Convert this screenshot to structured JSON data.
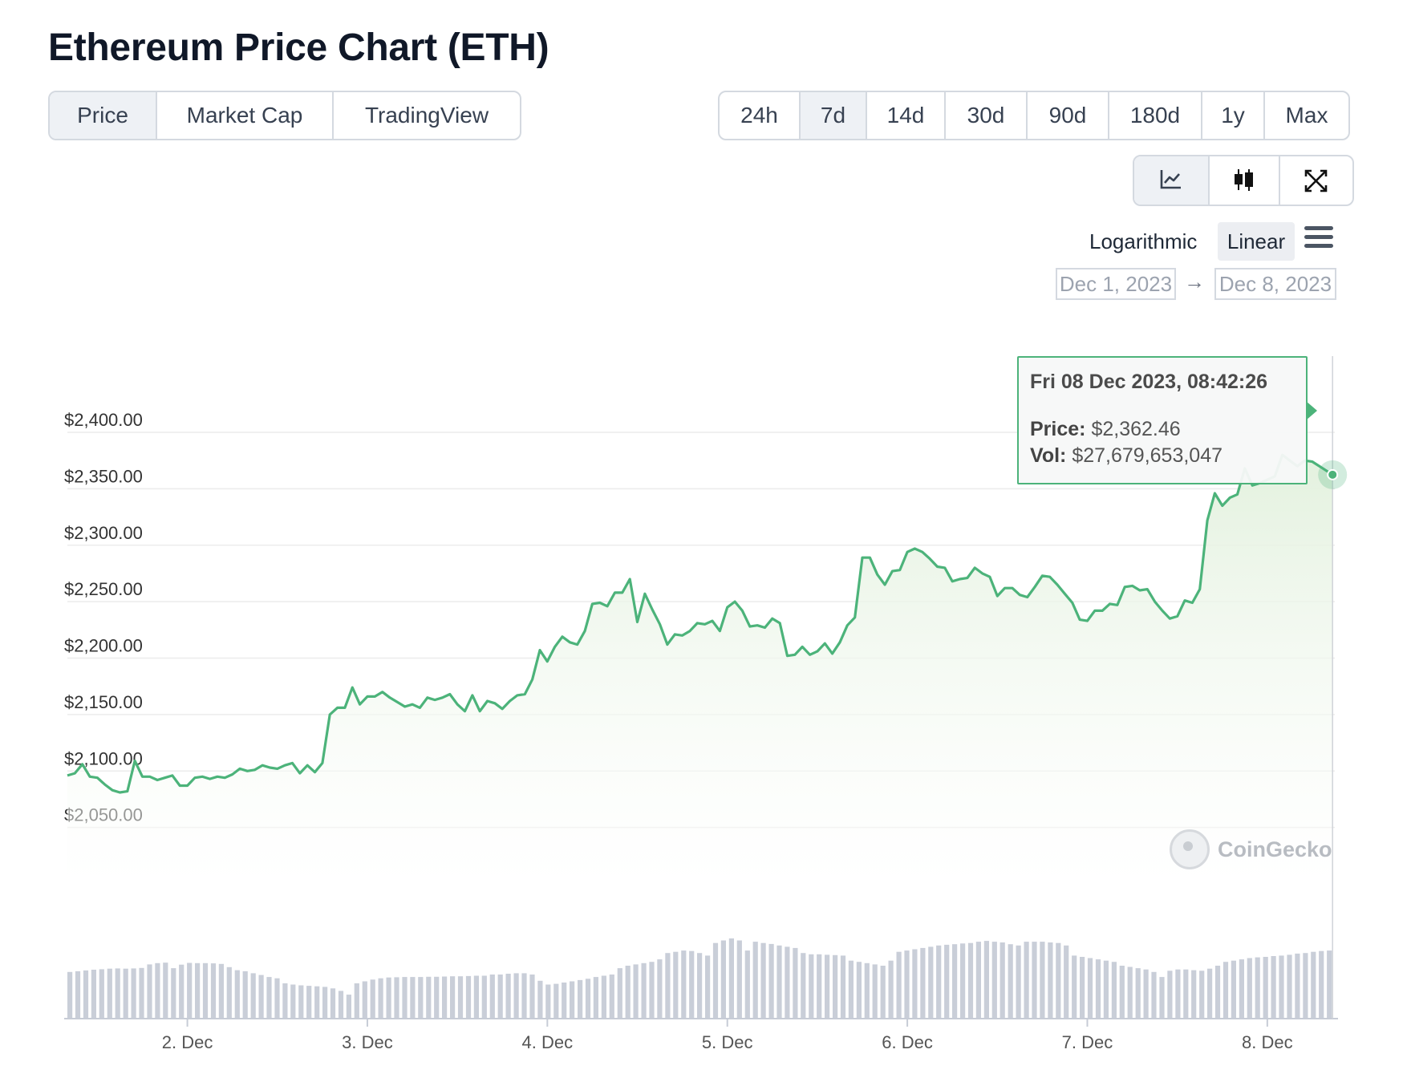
{
  "header": {
    "title": "Ethereum Price Chart (ETH)"
  },
  "tabs": [
    {
      "label": "Price",
      "active": true
    },
    {
      "label": "Market Cap",
      "active": false
    },
    {
      "label": "TradingView",
      "active": false
    }
  ],
  "ranges": [
    {
      "label": "24h",
      "active": false
    },
    {
      "label": "7d",
      "active": true
    },
    {
      "label": "14d",
      "active": false
    },
    {
      "label": "30d",
      "active": false
    },
    {
      "label": "90d",
      "active": false
    },
    {
      "label": "180d",
      "active": false
    },
    {
      "label": "1y",
      "active": false
    },
    {
      "label": "Max",
      "active": false
    }
  ],
  "view_buttons": [
    {
      "icon": "line-chart-icon",
      "active": true
    },
    {
      "icon": "candlestick-icon",
      "active": false
    },
    {
      "icon": "expand-icon",
      "active": false
    }
  ],
  "scale": {
    "log_label": "Logarithmic",
    "linear_label": "Linear",
    "selected": "Linear",
    "menu_icon": "hamburger-menu-icon"
  },
  "date_range": {
    "from": "Dec 1, 2023",
    "to": "Dec 8, 2023",
    "arrow": "→"
  },
  "tooltip": {
    "date": "Fri 08 Dec 2023, 08:42:26",
    "price_label": "Price:",
    "price_value": "$2,362.46",
    "vol_label": "Vol:",
    "vol_value": "$27,679,653,047"
  },
  "watermark": {
    "text": "CoinGecko",
    "icon": "coingecko-gecko-icon"
  },
  "colors": {
    "line": "#4cb37a",
    "area_top": "#e3f1de",
    "volume": "#c9ced8",
    "grid": "#ececec"
  },
  "chart_data": {
    "type": "line",
    "title": "",
    "xlabel": "",
    "ylabel": "",
    "grid": true,
    "x_range": [
      "2023-12-01T08:00",
      "2023-12-08T09:00"
    ],
    "ylim": [
      2000,
      2400
    ],
    "y_ticks": [
      2050,
      2100,
      2150,
      2200,
      2250,
      2300,
      2350,
      2400
    ],
    "y_tick_labels": [
      "$2,050.00",
      "$2,100.00",
      "$2,150.00",
      "$2,200.00",
      "$2,250.00",
      "$2,300.00",
      "$2,350.00",
      "$2,400.00"
    ],
    "x_ticks": [
      "2023-12-02T00:00",
      "2023-12-03T00:00",
      "2023-12-04T00:00",
      "2023-12-05T00:00",
      "2023-12-06T00:00",
      "2023-12-07T00:00",
      "2023-12-08T00:00"
    ],
    "x_tick_labels": [
      "2. Dec",
      "3. Dec",
      "4. Dec",
      "5. Dec",
      "6. Dec",
      "7. Dec",
      "8. Dec"
    ],
    "series": [
      {
        "name": "Price",
        "points": [
          [
            "2023-12-01T08:00",
            2096
          ],
          [
            "2023-12-01T09:00",
            2098
          ],
          [
            "2023-12-01T10:00",
            2106
          ],
          [
            "2023-12-01T11:00",
            2095
          ],
          [
            "2023-12-01T12:00",
            2094
          ],
          [
            "2023-12-01T13:00",
            2088
          ],
          [
            "2023-12-01T14:00",
            2083
          ],
          [
            "2023-12-01T15:00",
            2081
          ],
          [
            "2023-12-01T16:00",
            2082
          ],
          [
            "2023-12-01T17:00",
            2109
          ],
          [
            "2023-12-01T18:00",
            2095
          ],
          [
            "2023-12-01T19:00",
            2095
          ],
          [
            "2023-12-01T20:00",
            2092
          ],
          [
            "2023-12-01T21:00",
            2094
          ],
          [
            "2023-12-01T22:00",
            2096
          ],
          [
            "2023-12-01T23:00",
            2087
          ],
          [
            "2023-12-02T00:00",
            2087
          ],
          [
            "2023-12-02T01:00",
            2094
          ],
          [
            "2023-12-02T02:00",
            2095
          ],
          [
            "2023-12-02T03:00",
            2093
          ],
          [
            "2023-12-02T04:00",
            2095
          ],
          [
            "2023-12-02T05:00",
            2094
          ],
          [
            "2023-12-02T06:00",
            2097
          ],
          [
            "2023-12-02T07:00",
            2102
          ],
          [
            "2023-12-02T08:00",
            2100
          ],
          [
            "2023-12-02T09:00",
            2101
          ],
          [
            "2023-12-02T10:00",
            2105
          ],
          [
            "2023-12-02T11:00",
            2103
          ],
          [
            "2023-12-02T12:00",
            2102
          ],
          [
            "2023-12-02T13:00",
            2105
          ],
          [
            "2023-12-02T14:00",
            2107
          ],
          [
            "2023-12-02T15:00",
            2098
          ],
          [
            "2023-12-02T16:00",
            2105
          ],
          [
            "2023-12-02T17:00",
            2099
          ],
          [
            "2023-12-02T18:00",
            2107
          ],
          [
            "2023-12-02T19:00",
            2150
          ],
          [
            "2023-12-02T20:00",
            2156
          ],
          [
            "2023-12-02T21:00",
            2156
          ],
          [
            "2023-12-02T22:00",
            2174
          ],
          [
            "2023-12-02T23:00",
            2159
          ],
          [
            "2023-12-03T00:00",
            2166
          ],
          [
            "2023-12-03T01:00",
            2166
          ],
          [
            "2023-12-03T02:00",
            2170
          ],
          [
            "2023-12-03T03:00",
            2165
          ],
          [
            "2023-12-03T04:00",
            2161
          ],
          [
            "2023-12-03T05:00",
            2157
          ],
          [
            "2023-12-03T06:00",
            2159
          ],
          [
            "2023-12-03T07:00",
            2156
          ],
          [
            "2023-12-03T08:00",
            2165
          ],
          [
            "2023-12-03T09:00",
            2163
          ],
          [
            "2023-12-03T10:00",
            2165
          ],
          [
            "2023-12-03T11:00",
            2168
          ],
          [
            "2023-12-03T12:00",
            2159
          ],
          [
            "2023-12-03T13:00",
            2153
          ],
          [
            "2023-12-03T14:00",
            2167
          ],
          [
            "2023-12-03T15:00",
            2153
          ],
          [
            "2023-12-03T16:00",
            2162
          ],
          [
            "2023-12-03T17:00",
            2160
          ],
          [
            "2023-12-03T18:00",
            2155
          ],
          [
            "2023-12-03T19:00",
            2162
          ],
          [
            "2023-12-03T20:00",
            2167
          ],
          [
            "2023-12-03T21:00",
            2168
          ],
          [
            "2023-12-03T22:00",
            2181
          ],
          [
            "2023-12-03T23:00",
            2207
          ],
          [
            "2023-12-04T00:00",
            2197
          ],
          [
            "2023-12-04T01:00",
            2210
          ],
          [
            "2023-12-04T02:00",
            2219
          ],
          [
            "2023-12-04T03:00",
            2214
          ],
          [
            "2023-12-04T04:00",
            2212
          ],
          [
            "2023-12-04T05:00",
            2224
          ],
          [
            "2023-12-04T06:00",
            2248
          ],
          [
            "2023-12-04T07:00",
            2249
          ],
          [
            "2023-12-04T08:00",
            2246
          ],
          [
            "2023-12-04T09:00",
            2258
          ],
          [
            "2023-12-04T10:00",
            2258
          ],
          [
            "2023-12-04T11:00",
            2270
          ],
          [
            "2023-12-04T12:00",
            2232
          ],
          [
            "2023-12-04T13:00",
            2257
          ],
          [
            "2023-12-04T14:00",
            2243
          ],
          [
            "2023-12-04T15:00",
            2230
          ],
          [
            "2023-12-04T16:00",
            2212
          ],
          [
            "2023-12-04T17:00",
            2221
          ],
          [
            "2023-12-04T18:00",
            2220
          ],
          [
            "2023-12-04T19:00",
            2224
          ],
          [
            "2023-12-04T20:00",
            2231
          ],
          [
            "2023-12-04T21:00",
            2230
          ],
          [
            "2023-12-04T22:00",
            2233
          ],
          [
            "2023-12-04T23:00",
            2224
          ],
          [
            "2023-12-05T00:00",
            2245
          ],
          [
            "2023-12-05T01:00",
            2250
          ],
          [
            "2023-12-05T02:00",
            2242
          ],
          [
            "2023-12-05T03:00",
            2228
          ],
          [
            "2023-12-05T04:00",
            2229
          ],
          [
            "2023-12-05T05:00",
            2227
          ],
          [
            "2023-12-05T06:00",
            2235
          ],
          [
            "2023-12-05T07:00",
            2231
          ],
          [
            "2023-12-05T08:00",
            2202
          ],
          [
            "2023-12-05T09:00",
            2203
          ],
          [
            "2023-12-05T10:00",
            2210
          ],
          [
            "2023-12-05T11:00",
            2203
          ],
          [
            "2023-12-05T12:00",
            2206
          ],
          [
            "2023-12-05T13:00",
            2213
          ],
          [
            "2023-12-05T14:00",
            2204
          ],
          [
            "2023-12-05T15:00",
            2214
          ],
          [
            "2023-12-05T16:00",
            2229
          ],
          [
            "2023-12-05T17:00",
            2236
          ],
          [
            "2023-12-05T18:00",
            2289
          ],
          [
            "2023-12-05T19:00",
            2289
          ],
          [
            "2023-12-05T20:00",
            2274
          ],
          [
            "2023-12-05T21:00",
            2265
          ],
          [
            "2023-12-05T22:00",
            2277
          ],
          [
            "2023-12-05T23:00",
            2278
          ],
          [
            "2023-12-06T00:00",
            2294
          ],
          [
            "2023-12-06T01:00",
            2297
          ],
          [
            "2023-12-06T02:00",
            2294
          ],
          [
            "2023-12-06T03:00",
            2288
          ],
          [
            "2023-12-06T04:00",
            2281
          ],
          [
            "2023-12-06T05:00",
            2280
          ],
          [
            "2023-12-06T06:00",
            2268
          ],
          [
            "2023-12-06T07:00",
            2270
          ],
          [
            "2023-12-06T08:00",
            2271
          ],
          [
            "2023-12-06T09:00",
            2280
          ],
          [
            "2023-12-06T10:00",
            2275
          ],
          [
            "2023-12-06T11:00",
            2272
          ],
          [
            "2023-12-06T12:00",
            2255
          ],
          [
            "2023-12-06T13:00",
            2262
          ],
          [
            "2023-12-06T14:00",
            2262
          ],
          [
            "2023-12-06T15:00",
            2256
          ],
          [
            "2023-12-06T16:00",
            2254
          ],
          [
            "2023-12-06T17:00",
            2263
          ],
          [
            "2023-12-06T18:00",
            2273
          ],
          [
            "2023-12-06T19:00",
            2272
          ],
          [
            "2023-12-06T20:00",
            2265
          ],
          [
            "2023-12-06T21:00",
            2257
          ],
          [
            "2023-12-06T22:00",
            2249
          ],
          [
            "2023-12-06T23:00",
            2234
          ],
          [
            "2023-12-07T00:00",
            2233
          ],
          [
            "2023-12-07T01:00",
            2242
          ],
          [
            "2023-12-07T02:00",
            2242
          ],
          [
            "2023-12-07T03:00",
            2248
          ],
          [
            "2023-12-07T04:00",
            2247
          ],
          [
            "2023-12-07T05:00",
            2263
          ],
          [
            "2023-12-07T06:00",
            2264
          ],
          [
            "2023-12-07T07:00",
            2260
          ],
          [
            "2023-12-07T08:00",
            2261
          ],
          [
            "2023-12-07T09:00",
            2250
          ],
          [
            "2023-12-07T10:00",
            2242
          ],
          [
            "2023-12-07T11:00",
            2235
          ],
          [
            "2023-12-07T12:00",
            2237
          ],
          [
            "2023-12-07T13:00",
            2251
          ],
          [
            "2023-12-07T14:00",
            2249
          ],
          [
            "2023-12-07T15:00",
            2261
          ],
          [
            "2023-12-07T16:00",
            2322
          ],
          [
            "2023-12-07T17:00",
            2346
          ],
          [
            "2023-12-07T18:00",
            2335
          ],
          [
            "2023-12-07T19:00",
            2342
          ],
          [
            "2023-12-07T20:00",
            2345
          ],
          [
            "2023-12-07T21:00",
            2368
          ],
          [
            "2023-12-07T22:00",
            2353
          ],
          [
            "2023-12-07T23:00",
            2355
          ],
          [
            "2023-12-08T00:00",
            2358
          ],
          [
            "2023-12-08T01:00",
            2361
          ],
          [
            "2023-12-08T02:00",
            2380
          ],
          [
            "2023-12-08T03:00",
            2375
          ],
          [
            "2023-12-08T04:00",
            2370
          ],
          [
            "2023-12-08T05:00",
            2375
          ],
          [
            "2023-12-08T06:00",
            2374
          ],
          [
            "2023-12-08T08:42",
            2362.46
          ]
        ]
      },
      {
        "name": "Vol",
        "type": "bar",
        "volume_values": [
          18.5,
          18.8,
          19.1,
          19.4,
          19.6,
          19.8,
          19.9,
          19.8,
          19.9,
          20.1,
          21.5,
          22.0,
          22.2,
          20.0,
          21.4,
          22.1,
          22.0,
          22.0,
          21.9,
          21.7,
          20.4,
          19.2,
          18.8,
          18.0,
          17.3,
          16.5,
          16.0,
          14.0,
          13.5,
          13.2,
          13.0,
          12.8,
          12.6,
          12.0,
          11.0,
          9.5,
          14.0,
          14.8,
          15.5,
          16.0,
          16.3,
          16.4,
          16.5,
          16.5,
          16.5,
          16.6,
          16.6,
          16.7,
          16.8,
          16.8,
          16.9,
          17.0,
          17.0,
          17.5,
          17.5,
          17.8,
          18.0,
          18.0,
          17.5,
          15.0,
          13.5,
          13.8,
          14.3,
          14.8,
          15.3,
          15.8,
          16.5,
          17.0,
          17.5,
          20.0,
          21.0,
          21.5,
          22.0,
          22.5,
          23.5,
          26.0,
          26.5,
          27.0,
          26.8,
          26.0,
          25.0,
          30.0,
          31.0,
          31.8,
          31.0,
          27.0,
          30.5,
          30.0,
          29.6,
          29.0,
          28.5,
          28.0,
          26.0,
          25.5,
          25.5,
          25.3,
          25.2,
          25.0,
          23.0,
          22.5,
          22.0,
          21.5,
          21.0,
          23.0,
          26.5,
          27.0,
          27.5,
          28.0,
          28.5,
          29.0,
          29.3,
          29.5,
          29.8,
          30.0,
          30.5,
          30.8,
          30.5,
          30.2,
          29.5,
          29.0,
          30.5,
          30.5,
          30.5,
          30.2,
          30.0,
          29.0,
          25.0,
          24.5,
          24.0,
          23.5,
          23.0,
          22.5,
          21.0,
          20.5,
          20.0,
          19.5,
          18.5,
          16.5,
          19.0,
          19.5,
          19.5,
          19.2,
          19.0,
          19.8,
          21.0,
          22.5,
          23.0,
          23.5,
          24.0,
          24.3,
          24.5,
          24.8,
          25.0,
          25.3,
          25.8,
          26.0,
          26.5,
          26.8,
          27.0
        ]
      }
    ],
    "hover": {
      "x": "2023-12-08T08:42",
      "y": 2362.46
    }
  }
}
